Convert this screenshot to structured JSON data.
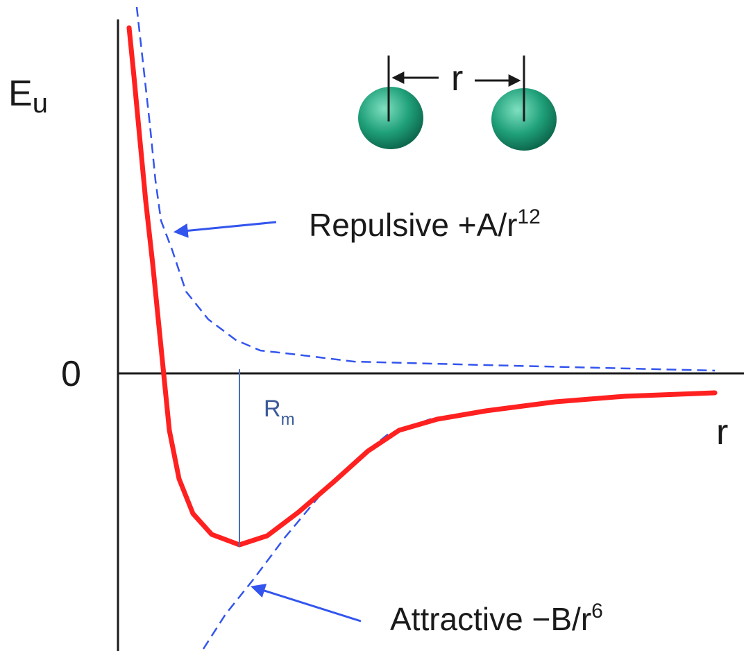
{
  "axes": {
    "y_label_main": "E",
    "y_label_sub": "u",
    "zero_label": "0",
    "x_label": "r"
  },
  "separation": {
    "label": "r"
  },
  "repulsive": {
    "label": "Repulsive  +A/r",
    "exponent": "12"
  },
  "attractive": {
    "label": "Attractive −B/r",
    "exponent": "6"
  },
  "minimum": {
    "label_main": "R",
    "label_sub": "m"
  },
  "colors": {
    "potential_curve": "#ff2020",
    "component_curves": "#3355ee",
    "axis": "#1a1a1a",
    "marker_line": "#4a6fb5",
    "atom": "#1fa079",
    "atom_highlight": "#7fe0c0"
  }
}
